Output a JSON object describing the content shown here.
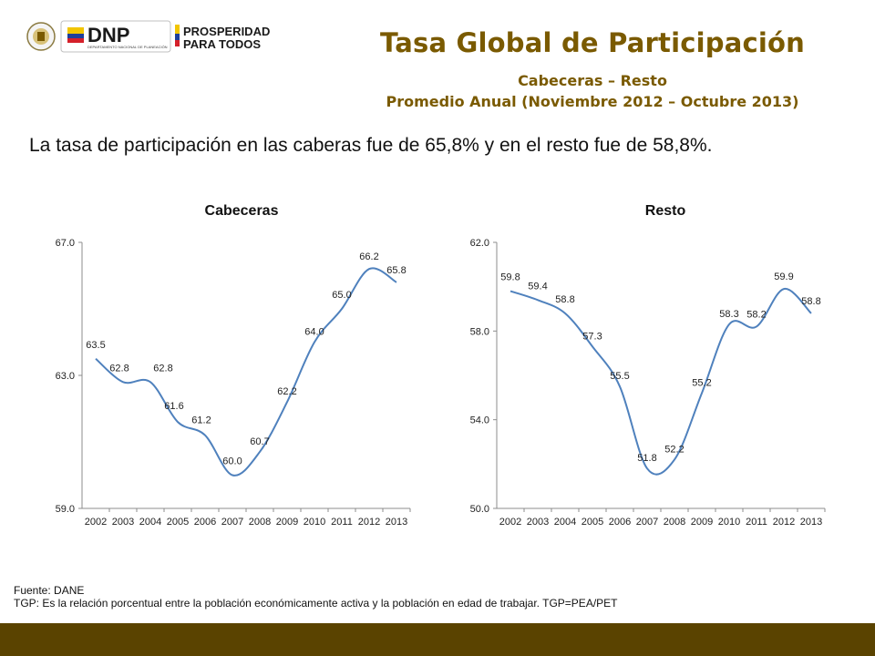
{
  "header": {
    "logo_dnp_text": "DNP",
    "logo_dnp_subtext": "DEPARTAMENTO NACIONAL DE PLANEACIÓN",
    "logo_prosperidad_line1": "PROSPERIDAD",
    "logo_prosperidad_line2": "PARA TODOS",
    "title": "Tasa Global de Participación",
    "subtitle1": "Cabeceras – Resto",
    "subtitle2": "Promedio Anual (Noviembre 2012 – Octubre 2013)"
  },
  "intro": "La tasa de participación en las caberas fue de 65,8% y en el resto fue de 58,8%.",
  "colors": {
    "title": "#7a5a00",
    "line": "#4f81bd",
    "footer": "#5a4300"
  },
  "chart_data": [
    {
      "type": "line",
      "title": "Cabeceras",
      "x": [
        "2002",
        "2003",
        "2004",
        "2005",
        "2006",
        "2007",
        "2008",
        "2009",
        "2010",
        "2011",
        "2012",
        "2013"
      ],
      "series": [
        {
          "values": [
            63.5,
            62.8,
            62.8,
            61.6,
            61.2,
            60.0,
            60.7,
            62.2,
            64.0,
            65.0,
            66.2,
            65.8
          ]
        }
      ],
      "data_labels": [
        "63.5",
        "62.8",
        "62.8",
        "61.6",
        "61.2",
        "60.0",
        "60.7",
        "62.2",
        "64.0",
        "65.0",
        "66.2",
        "65.8"
      ],
      "ylim": [
        59.0,
        67.0
      ],
      "yticks": [
        "59.0",
        "63.0",
        "67.0"
      ],
      "grid": false
    },
    {
      "type": "line",
      "title": "Resto",
      "x": [
        "2002",
        "2003",
        "2004",
        "2005",
        "2006",
        "2007",
        "2008",
        "2009",
        "2010",
        "2011",
        "2012",
        "2013"
      ],
      "series": [
        {
          "values": [
            59.8,
            59.4,
            58.8,
            57.3,
            55.5,
            51.8,
            52.2,
            55.2,
            58.3,
            58.2,
            59.9,
            58.8
          ]
        }
      ],
      "data_labels": [
        "59.8",
        "59.4",
        "58.8",
        "57.3",
        "55.5",
        "51.8",
        "52.2",
        "55.2",
        "58.3",
        "58.2",
        "59.9",
        "58.8"
      ],
      "ylim": [
        50.0,
        62.0
      ],
      "yticks": [
        "50.0",
        "54.0",
        "58.0",
        "62.0"
      ],
      "grid": false
    }
  ],
  "notes": {
    "source": "Fuente: DANE",
    "definition": "TGP: Es la relación porcentual entre la población económicamente activa y la población  en edad de trabajar. TGP=PEA/PET"
  }
}
